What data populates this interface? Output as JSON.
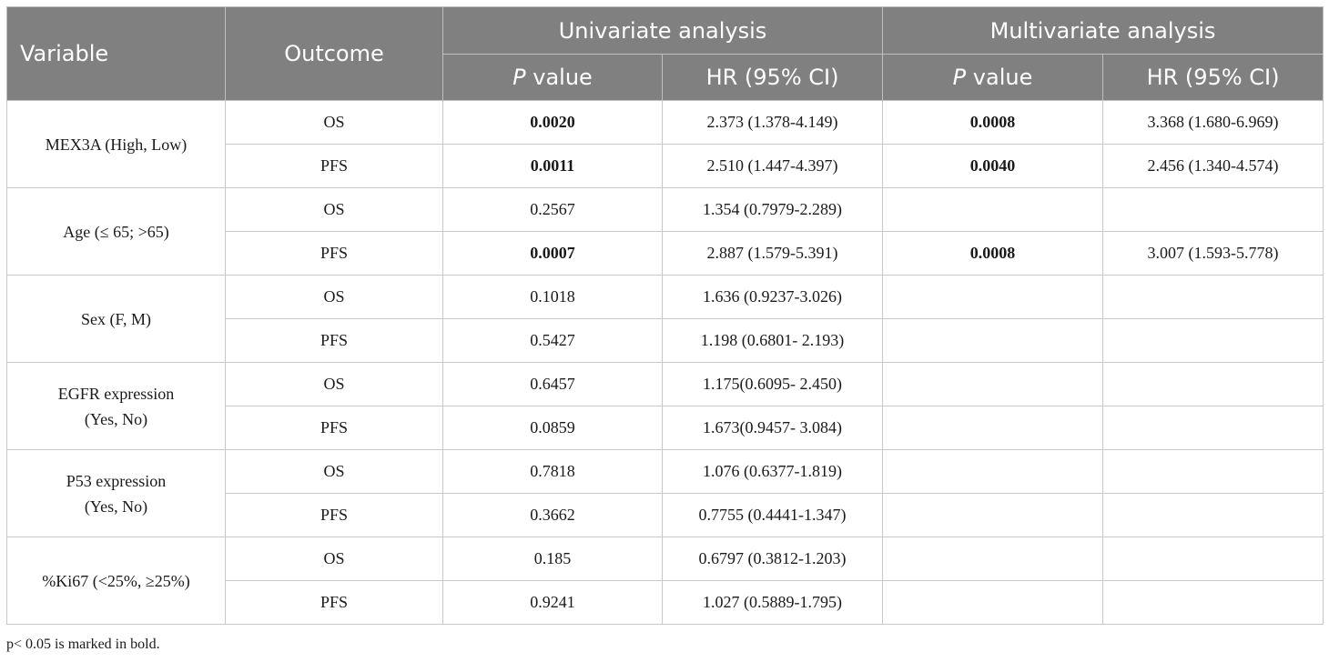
{
  "header": {
    "variable": "Variable",
    "outcome": "Outcome",
    "univariate": "Univariate analysis",
    "multivariate": "Multivariate analysis",
    "p_letter": "P",
    "p_rest": " value",
    "hr": "HR (95% CI)"
  },
  "groups": [
    {
      "variable": "MEX3A (High, Low)",
      "rows": [
        {
          "outcome": "OS",
          "uni_p": "0.0020",
          "uni_hr": "2.373 (1.378-4.149)",
          "multi_p": "0.0008",
          "multi_hr": "3.368 (1.680-6.969)"
        },
        {
          "outcome": "PFS",
          "uni_p": "0.0011",
          "uni_hr": "2.510 (1.447-4.397)",
          "multi_p": "0.0040",
          "multi_hr": "2.456 (1.340-4.574)"
        }
      ]
    },
    {
      "variable": "Age (≤ 65; >65)",
      "rows": [
        {
          "outcome": "OS",
          "uni_p": "0.2567",
          "uni_hr": "1.354 (0.7979-2.289)",
          "multi_p": "",
          "multi_hr": ""
        },
        {
          "outcome": "PFS",
          "uni_p": "0.0007",
          "uni_hr": "2.887 (1.579-5.391)",
          "multi_p": "0.0008",
          "multi_hr": "3.007 (1.593-5.778)"
        }
      ]
    },
    {
      "variable": "Sex (F, M)",
      "rows": [
        {
          "outcome": "OS",
          "uni_p": "0.1018",
          "uni_hr": "1.636 (0.9237-3.026)",
          "multi_p": "",
          "multi_hr": ""
        },
        {
          "outcome": "PFS",
          "uni_p": "0.5427",
          "uni_hr": "1.198 (0.6801- 2.193)",
          "multi_p": "",
          "multi_hr": ""
        }
      ]
    },
    {
      "variable_line1": "EGFR expression",
      "variable_line2": "(Yes, No)",
      "rows": [
        {
          "outcome": "OS",
          "uni_p": "0.6457",
          "uni_hr": "1.175(0.6095- 2.450)",
          "multi_p": "",
          "multi_hr": ""
        },
        {
          "outcome": "PFS",
          "uni_p": "0.0859",
          "uni_hr": "1.673(0.9457- 3.084)",
          "multi_p": "",
          "multi_hr": ""
        }
      ]
    },
    {
      "variable_line1": "P53 expression",
      "variable_line2": "(Yes, No)",
      "rows": [
        {
          "outcome": "OS",
          "uni_p": "0.7818",
          "uni_hr": "1.076 (0.6377-1.819)",
          "multi_p": "",
          "multi_hr": ""
        },
        {
          "outcome": "PFS",
          "uni_p": "0.3662",
          "uni_hr": "0.7755 (0.4441-1.347)",
          "multi_p": "",
          "multi_hr": ""
        }
      ]
    },
    {
      "variable": "%Ki67 (<25%, ≥25%)",
      "rows": [
        {
          "outcome": "OS",
          "uni_p": "0.185",
          "uni_hr": "0.6797 (0.3812-1.203)",
          "multi_p": "",
          "multi_hr": ""
        },
        {
          "outcome": "PFS",
          "uni_p": "0.9241",
          "uni_hr": "1.027 (0.5889-1.795)",
          "multi_p": "",
          "multi_hr": ""
        }
      ]
    }
  ],
  "footnote": "p< 0.05 is marked in bold."
}
